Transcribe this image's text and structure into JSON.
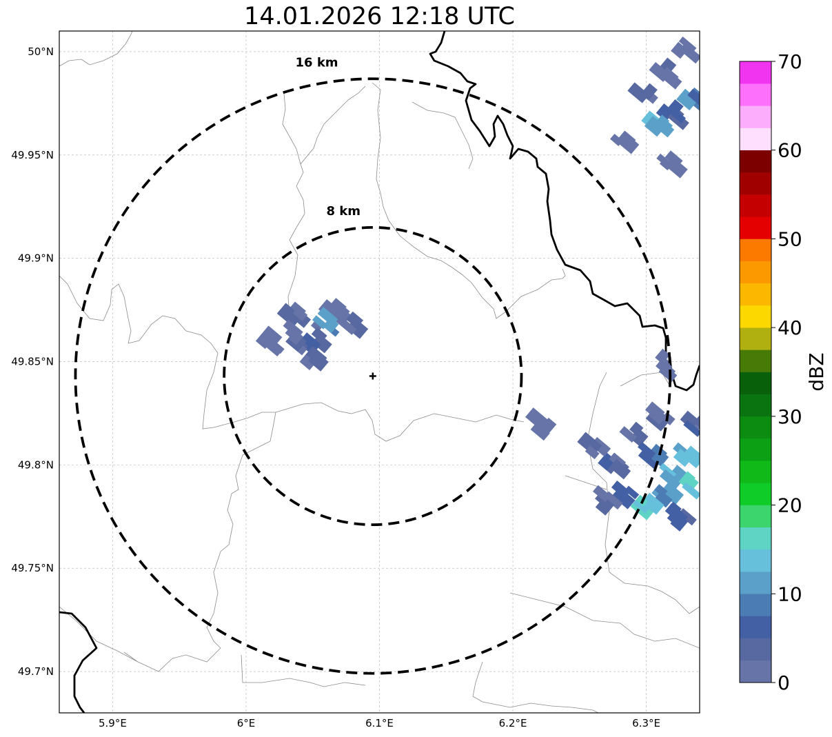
{
  "title": "14.01.2026 12:18 UTC",
  "map": {
    "lon_range": [
      5.86,
      6.34
    ],
    "lat_range": [
      49.68,
      50.01
    ],
    "center": {
      "lon": 6.095,
      "lat": 49.843
    },
    "lon_ticks": [
      {
        "value": 5.9,
        "label": "5.9°E"
      },
      {
        "value": 6.0,
        "label": "6°E"
      },
      {
        "value": 6.1,
        "label": "6.1°E"
      },
      {
        "value": 6.2,
        "label": "6.2°E"
      },
      {
        "value": 6.3,
        "label": "6.3°E"
      }
    ],
    "lat_ticks": [
      {
        "value": 50.0,
        "label": "50°N"
      },
      {
        "value": 49.95,
        "label": "49.95°N"
      },
      {
        "value": 49.9,
        "label": "49.9°N"
      },
      {
        "value": 49.85,
        "label": "49.85°N"
      },
      {
        "value": 49.8,
        "label": "49.8°N"
      },
      {
        "value": 49.75,
        "label": "49.75°N"
      },
      {
        "value": 49.7,
        "label": "49.7°N"
      }
    ],
    "grid": true,
    "rings": [
      {
        "radius_km": 8,
        "label": "8 km"
      },
      {
        "radius_km": 16,
        "label": "16 km"
      }
    ],
    "echo_cells": [
      {
        "lon": 6.055,
        "lat": 49.862,
        "value": 4
      },
      {
        "lon": 6.04,
        "lat": 49.872,
        "value": 3
      },
      {
        "lon": 6.07,
        "lat": 49.874,
        "value": 2
      },
      {
        "lon": 6.048,
        "lat": 49.858,
        "value": 6
      },
      {
        "lon": 6.062,
        "lat": 49.868,
        "value": 11
      },
      {
        "lon": 6.035,
        "lat": 49.862,
        "value": 2
      },
      {
        "lon": 6.082,
        "lat": 49.866,
        "value": 3
      },
      {
        "lon": 6.052,
        "lat": 49.85,
        "value": 3
      },
      {
        "lon": 6.018,
        "lat": 49.86,
        "value": 1
      },
      {
        "lon": 6.3,
        "lat": 49.98,
        "value": 3
      },
      {
        "lon": 6.315,
        "lat": 49.99,
        "value": 2
      },
      {
        "lon": 6.32,
        "lat": 49.97,
        "value": 5
      },
      {
        "lon": 6.33,
        "lat": 50.0,
        "value": 2
      },
      {
        "lon": 6.335,
        "lat": 49.978,
        "value": 9
      },
      {
        "lon": 6.31,
        "lat": 49.965,
        "value": 12
      },
      {
        "lon": 6.282,
        "lat": 49.958,
        "value": 1
      },
      {
        "lon": 6.318,
        "lat": 49.946,
        "value": 1
      },
      {
        "lon": 6.275,
        "lat": 49.8,
        "value": 4
      },
      {
        "lon": 6.29,
        "lat": 49.815,
        "value": 3
      },
      {
        "lon": 6.305,
        "lat": 49.805,
        "value": 8
      },
      {
        "lon": 6.32,
        "lat": 49.795,
        "value": 12
      },
      {
        "lon": 6.33,
        "lat": 49.805,
        "value": 13
      },
      {
        "lon": 6.315,
        "lat": 49.785,
        "value": 10
      },
      {
        "lon": 6.3,
        "lat": 49.78,
        "value": 14
      },
      {
        "lon": 6.285,
        "lat": 49.785,
        "value": 7
      },
      {
        "lon": 6.27,
        "lat": 49.783,
        "value": 3
      },
      {
        "lon": 6.325,
        "lat": 49.775,
        "value": 6
      },
      {
        "lon": 6.335,
        "lat": 49.79,
        "value": 16
      },
      {
        "lon": 6.335,
        "lat": 49.82,
        "value": 4
      },
      {
        "lon": 6.31,
        "lat": 49.822,
        "value": 2
      },
      {
        "lon": 6.26,
        "lat": 49.808,
        "value": 2
      },
      {
        "lon": 6.22,
        "lat": 49.82,
        "value": 1
      },
      {
        "lon": 6.315,
        "lat": 49.848,
        "value": 1
      }
    ]
  },
  "colorbar": {
    "label": "dBZ",
    "vmin": 0,
    "vmax": 70,
    "ticks": [
      {
        "value": 0,
        "label": "0"
      },
      {
        "value": 10,
        "label": "10"
      },
      {
        "value": 20,
        "label": "20"
      },
      {
        "value": 30,
        "label": "30"
      },
      {
        "value": 40,
        "label": "40"
      },
      {
        "value": 50,
        "label": "50"
      },
      {
        "value": 60,
        "label": "60"
      },
      {
        "value": 70,
        "label": "70"
      }
    ],
    "colors": [
      "#6674a8",
      "#5868a0",
      "#4460a4",
      "#4c7cb4",
      "#5aa0c8",
      "#66c0dc",
      "#60d4c4",
      "#3cd46c",
      "#10cc28",
      "#10b818",
      "#0ca014",
      "#0c8c10",
      "#0a7410",
      "#08600a",
      "#487a08",
      "#b0b010",
      "#fcd800",
      "#fcb800",
      "#fc9800",
      "#fc7a00",
      "#e40000",
      "#c40000",
      "#a00000",
      "#7c0000",
      "#fee0fe",
      "#fcaefc",
      "#fc70fc",
      "#f034f0"
    ]
  }
}
